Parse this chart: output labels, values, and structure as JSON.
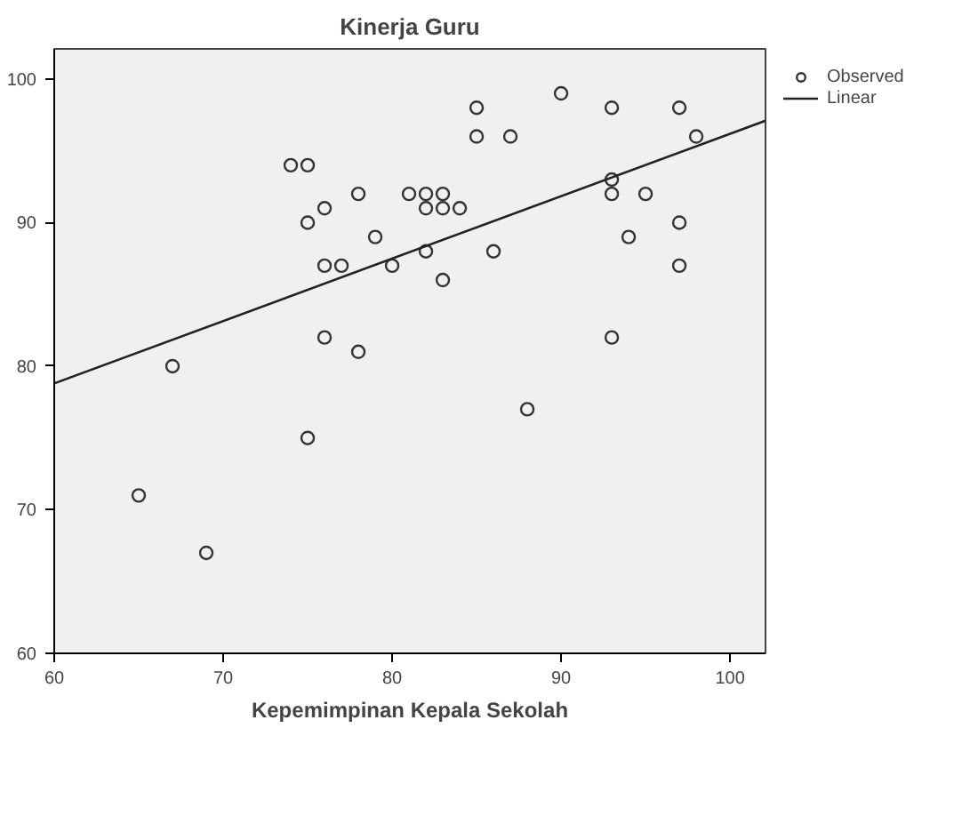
{
  "chart_data": {
    "type": "scatter",
    "title": "Kinerja Guru",
    "xlabel": "Kepemimpinan Kepala Sekolah",
    "xlim": [
      60,
      102.1
    ],
    "ylim": [
      60,
      102.1
    ],
    "xticks": [
      60,
      70,
      80,
      90,
      100
    ],
    "yticks": [
      60,
      70,
      80,
      90,
      100
    ],
    "grid": false,
    "legend": "top right",
    "series": [
      {
        "name": "Observed",
        "marker": "circle",
        "color": "#333333",
        "x": [
          65,
          67,
          69,
          74,
          75,
          75,
          75,
          76,
          76,
          76,
          77,
          78,
          78,
          79,
          80,
          81,
          82,
          82,
          82,
          83,
          83,
          83,
          84,
          85,
          85,
          86,
          87,
          88,
          90,
          93,
          93,
          93,
          93,
          94,
          95,
          97,
          97,
          97,
          98
        ],
        "values": [
          71,
          80,
          67,
          94,
          94,
          90,
          75,
          91,
          87,
          82,
          87,
          92,
          81,
          89,
          87,
          92,
          92,
          91,
          88,
          92,
          91,
          86,
          91,
          98,
          96,
          88,
          96,
          77,
          99,
          98,
          93,
          92,
          82,
          89,
          92,
          98,
          90,
          87,
          96
        ]
      },
      {
        "name": "Linear",
        "type": "line",
        "color": "#222222",
        "line_style": "solid",
        "x": [
          60,
          102.1
        ],
        "values": [
          78.8,
          97.1
        ]
      }
    ]
  }
}
